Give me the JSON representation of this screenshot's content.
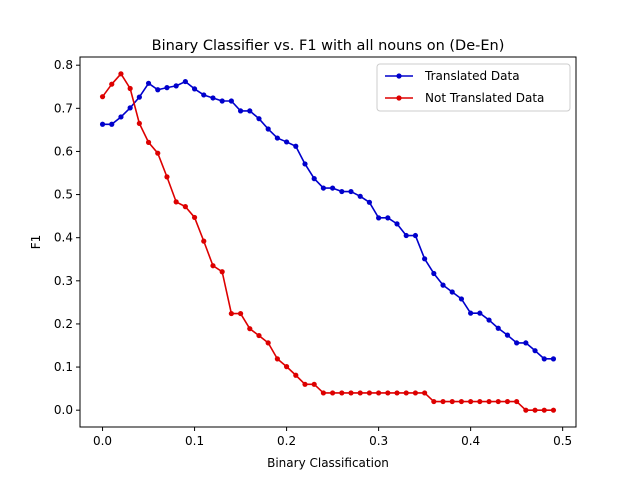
{
  "chart_data": {
    "type": "line",
    "title": "Binary Classifier vs. F1 with all nouns on (De-En)",
    "xlabel": "Binary Classification",
    "ylabel": "F1",
    "xlim": [
      -0.0245,
      0.5145
    ],
    "ylim": [
      -0.039,
      0.819
    ],
    "xticks": [
      0.0,
      0.1,
      0.2,
      0.3,
      0.4,
      0.5
    ],
    "xtick_labels": [
      "0.0",
      "0.1",
      "0.2",
      "0.3",
      "0.4",
      "0.5"
    ],
    "yticks": [
      0.0,
      0.1,
      0.2,
      0.3,
      0.4,
      0.5,
      0.6,
      0.7,
      0.8
    ],
    "ytick_labels": [
      "0.0",
      "0.1",
      "0.2",
      "0.3",
      "0.4",
      "0.5",
      "0.6",
      "0.7",
      "0.8"
    ],
    "grid": false,
    "legend_position": "top-right",
    "x": [
      0.0,
      0.01,
      0.02,
      0.03,
      0.04,
      0.05,
      0.06,
      0.07,
      0.08,
      0.09,
      0.1,
      0.11,
      0.12,
      0.13,
      0.14,
      0.15,
      0.16,
      0.17,
      0.18,
      0.19,
      0.2,
      0.21,
      0.22,
      0.23,
      0.24,
      0.25,
      0.26,
      0.27,
      0.28,
      0.29,
      0.3,
      0.31,
      0.32,
      0.33,
      0.34,
      0.35,
      0.36,
      0.37,
      0.38,
      0.39,
      0.4,
      0.41,
      0.42,
      0.43,
      0.44,
      0.45,
      0.46,
      0.47,
      0.48,
      0.49
    ],
    "series": [
      {
        "name": "Translated Data",
        "color": "#0000cc",
        "values": [
          0.663,
          0.663,
          0.68,
          0.701,
          0.726,
          0.758,
          0.743,
          0.748,
          0.752,
          0.762,
          0.745,
          0.731,
          0.724,
          0.717,
          0.717,
          0.694,
          0.694,
          0.676,
          0.652,
          0.631,
          0.622,
          0.612,
          0.571,
          0.537,
          0.515,
          0.515,
          0.507,
          0.507,
          0.496,
          0.482,
          0.446,
          0.446,
          0.432,
          0.405,
          0.405,
          0.351,
          0.317,
          0.29,
          0.274,
          0.258,
          0.225,
          0.225,
          0.209,
          0.19,
          0.174,
          0.156,
          0.156,
          0.138,
          0.119,
          0.119
        ]
      },
      {
        "name": "Not Translated Data",
        "color": "#dd0000",
        "values": [
          0.727,
          0.756,
          0.78,
          0.746,
          0.665,
          0.621,
          0.596,
          0.541,
          0.483,
          0.472,
          0.447,
          0.392,
          0.335,
          0.321,
          0.224,
          0.224,
          0.189,
          0.173,
          0.156,
          0.119,
          0.101,
          0.081,
          0.06,
          0.06,
          0.04,
          0.04,
          0.04,
          0.04,
          0.04,
          0.04,
          0.04,
          0.04,
          0.04,
          0.04,
          0.04,
          0.04,
          0.02,
          0.02,
          0.02,
          0.02,
          0.02,
          0.02,
          0.02,
          0.02,
          0.02,
          0.02,
          0.0,
          0.0,
          0.0,
          0.0
        ]
      }
    ]
  }
}
